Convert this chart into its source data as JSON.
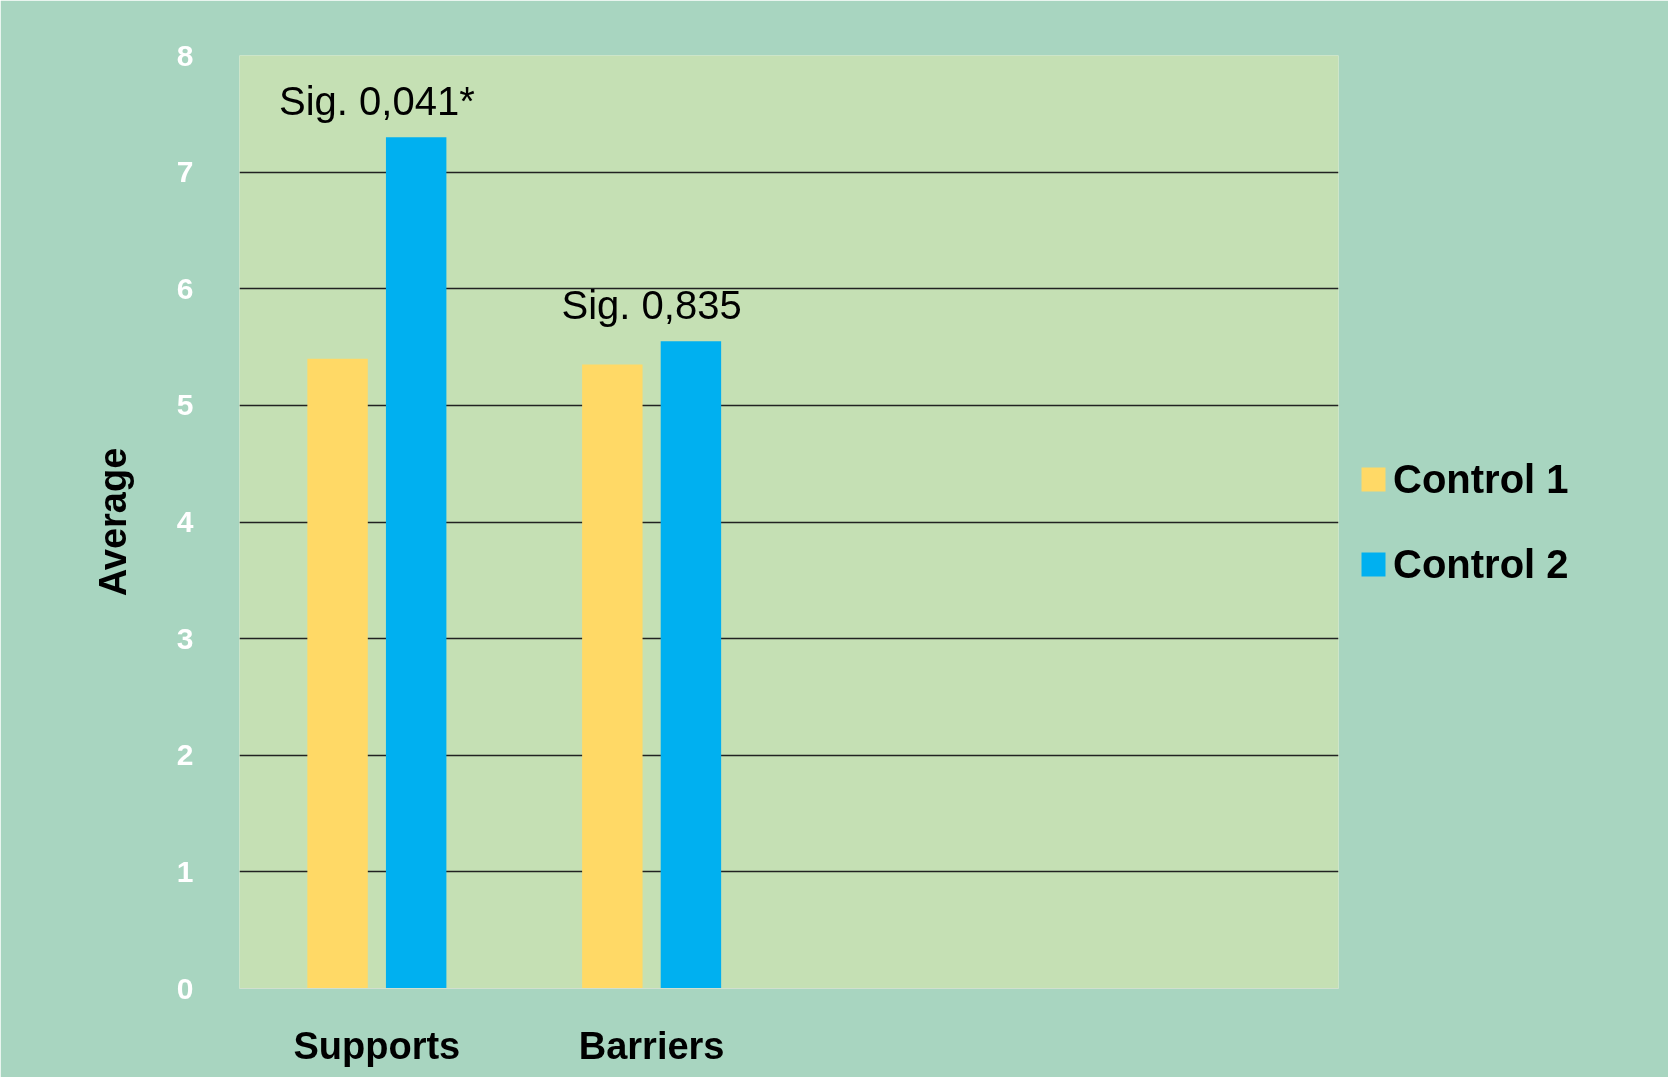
{
  "chart_data": {
    "type": "bar",
    "ylabel": "Average",
    "categories": [
      "Supports",
      "Barriers",
      null,
      null
    ],
    "series": [
      {
        "name": "Control 1",
        "color": "#ffd966",
        "values": [
          5.4,
          5.35,
          null,
          null
        ]
      },
      {
        "name": "Control 2",
        "color": "#00b0f0",
        "values": [
          7.3,
          5.55,
          null,
          null
        ]
      }
    ],
    "ylim": [
      0,
      8
    ],
    "yticks": [
      0,
      1,
      2,
      3,
      4,
      5,
      6,
      7,
      8
    ],
    "grid": "y",
    "legend": "right",
    "annotations": [
      "Sig. 0,041*",
      "Sig. 0,835"
    ]
  }
}
